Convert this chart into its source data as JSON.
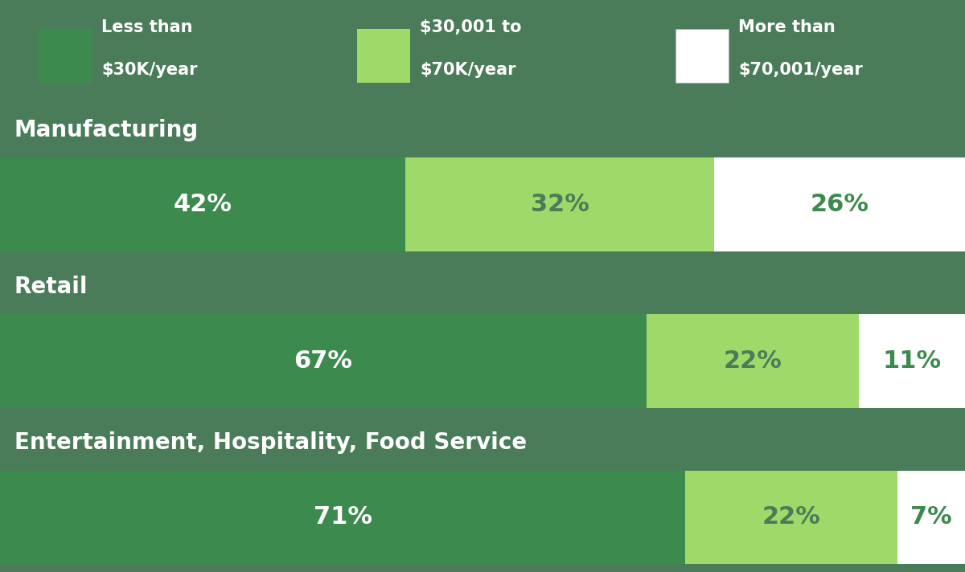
{
  "categories": [
    "Manufacturing",
    "Retail",
    "Entertainment, Hospitality, Food Service"
  ],
  "segments": [
    {
      "label": "Less than\n$30K/year",
      "color": "#3d8a4e",
      "text_color": "#ffffff",
      "values": [
        42,
        67,
        71
      ]
    },
    {
      "label": "$30,001 to\n$70K/year",
      "color": "#9fd96a",
      "text_color": "#4a7c59",
      "values": [
        32,
        22,
        22
      ]
    },
    {
      "label": "More than\n$70,001/year",
      "color": "#ffffff",
      "text_color": "#3d8a4e",
      "values": [
        26,
        11,
        7
      ]
    }
  ],
  "background_color": "#4a7c59",
  "header_bg_color": "#4a7c59",
  "category_label_color": "#ffffff",
  "legend_text_color": "#ffffff",
  "figsize": [
    12.0,
    7.12
  ],
  "dpi": 100,
  "bar_fontsize": 22,
  "category_fontsize": 20,
  "legend_fontsize": 15
}
